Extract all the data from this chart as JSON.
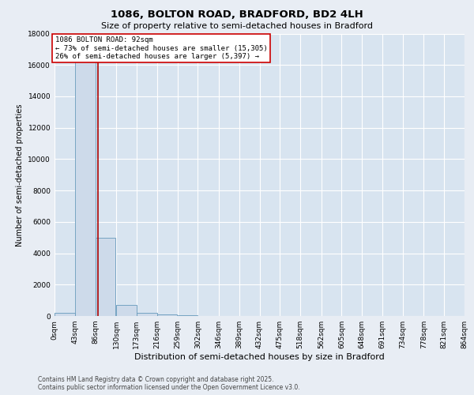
{
  "title_line1": "1086, BOLTON ROAD, BRADFORD, BD2 4LH",
  "title_line2": "Size of property relative to semi-detached houses in Bradford",
  "xlabel": "Distribution of semi-detached houses by size in Bradford",
  "ylabel": "Number of semi-detached properties",
  "annotation_line1": "1086 BOLTON ROAD: 92sqm",
  "annotation_line2": "← 73% of semi-detached houses are smaller (15,305)",
  "annotation_line3": "26% of semi-detached houses are larger (5,397) →",
  "property_size_sqm": 92,
  "bin_edges": [
    0,
    43,
    86,
    130,
    173,
    216,
    259,
    302,
    346,
    389,
    432,
    475,
    518,
    562,
    605,
    648,
    691,
    734,
    778,
    821,
    864
  ],
  "bin_labels": [
    "0sqm",
    "43sqm",
    "86sqm",
    "130sqm",
    "173sqm",
    "216sqm",
    "259sqm",
    "302sqm",
    "346sqm",
    "389sqm",
    "432sqm",
    "475sqm",
    "518sqm",
    "562sqm",
    "605sqm",
    "648sqm",
    "691sqm",
    "734sqm",
    "778sqm",
    "821sqm",
    "864sqm"
  ],
  "bar_heights": [
    200,
    16500,
    5000,
    700,
    200,
    100,
    50,
    0,
    0,
    0,
    0,
    0,
    0,
    0,
    0,
    0,
    0,
    0,
    0,
    0
  ],
  "bar_color": "#cddaea",
  "bar_edgecolor": "#6699bb",
  "background_color": "#e8edf4",
  "plot_bg_color": "#d8e4f0",
  "grid_color": "#ffffff",
  "vline_color": "#aa0000",
  "vline_x": 92,
  "ylim": [
    0,
    18000
  ],
  "yticks": [
    0,
    2000,
    4000,
    6000,
    8000,
    10000,
    12000,
    14000,
    16000,
    18000
  ],
  "title_fontsize": 9.5,
  "subtitle_fontsize": 8,
  "ylabel_fontsize": 7,
  "xlabel_fontsize": 8,
  "tick_fontsize": 6.5,
  "footer_line1": "Contains HM Land Registry data © Crown copyright and database right 2025.",
  "footer_line2": "Contains public sector information licensed under the Open Government Licence v3.0."
}
